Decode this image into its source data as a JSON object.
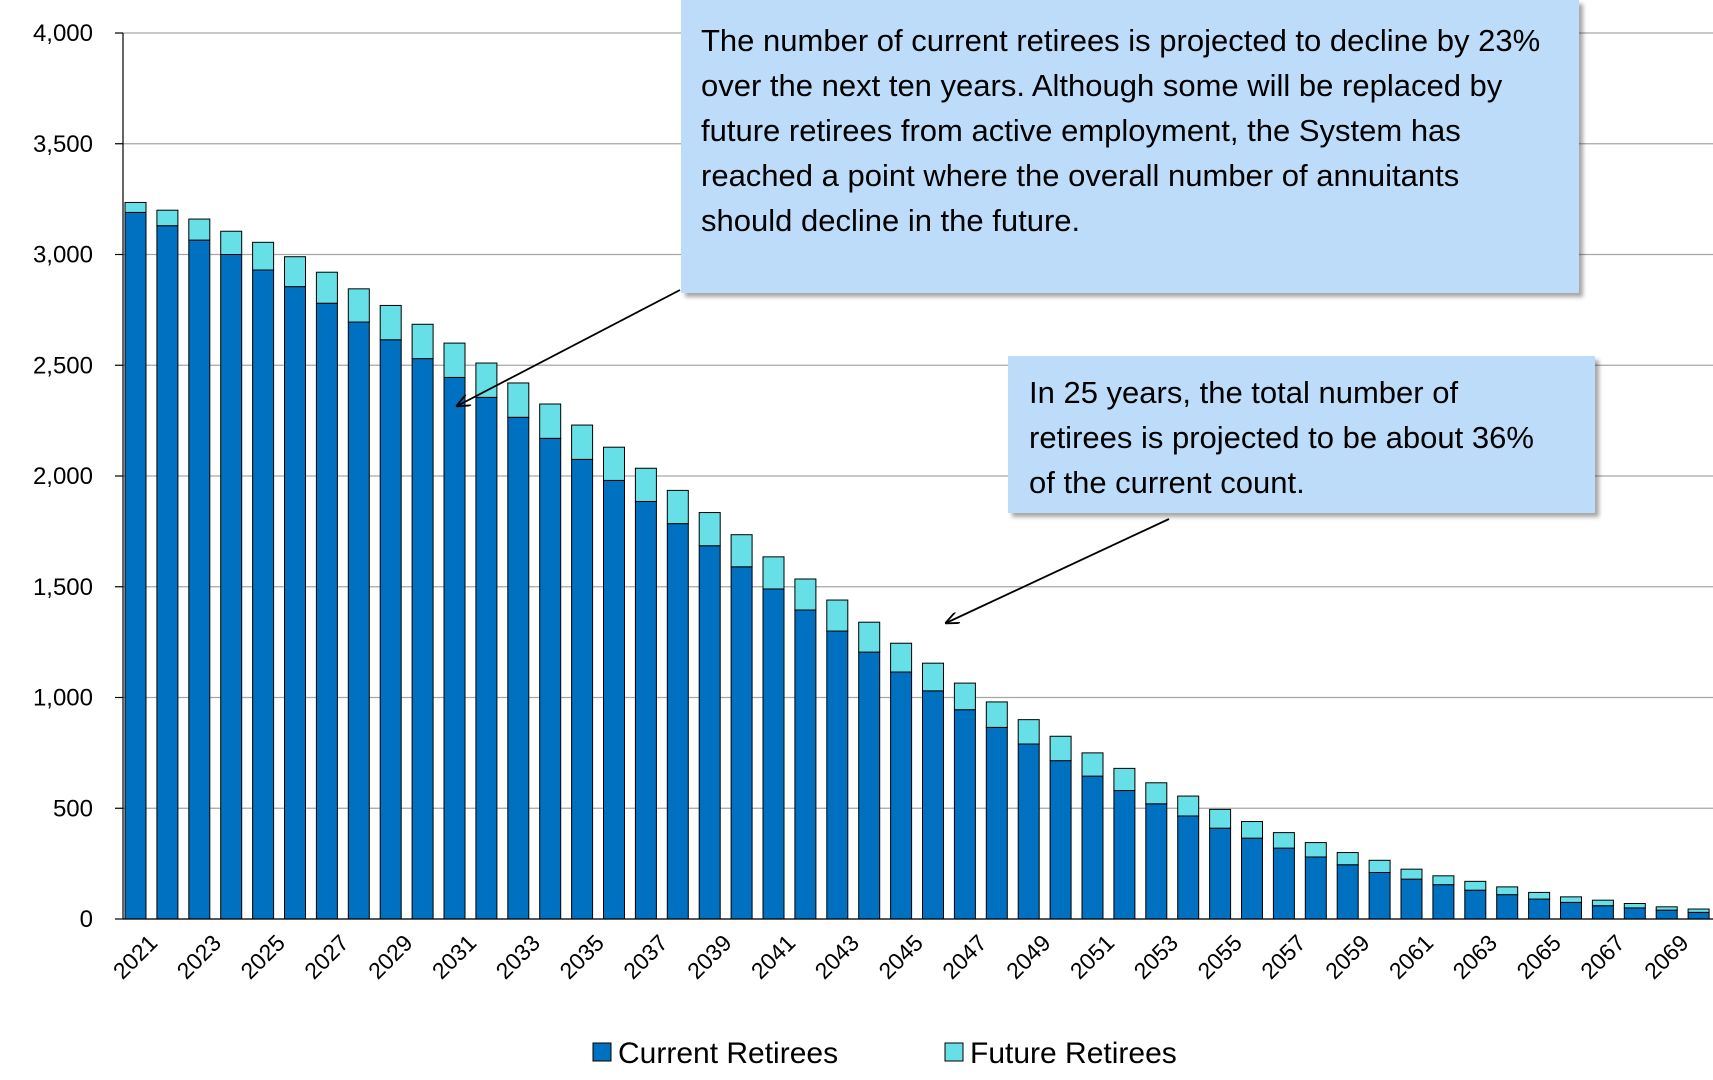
{
  "chart_data": {
    "type": "stacked_bar",
    "categories": [
      "2021",
      null,
      "2023",
      null,
      "2025",
      null,
      "2027",
      null,
      "2029",
      null,
      "2031",
      null,
      "2033",
      null,
      "2035",
      null,
      "2037",
      null,
      "2039",
      null,
      "2041",
      null,
      "2043",
      null,
      "2045",
      null,
      "2047",
      null,
      "2049",
      null,
      "2051",
      null,
      "2053",
      null,
      "2055",
      null,
      "2057",
      null,
      "2059",
      null,
      "2061",
      null,
      "2063",
      null,
      "2065",
      null,
      "2067",
      null,
      "2069",
      null
    ],
    "series": [
      {
        "name": "Current Retirees",
        "color": "#0070c0",
        "values": [
          3190,
          3130,
          3065,
          3000,
          2930,
          2855,
          2780,
          2695,
          2615,
          2530,
          2445,
          2355,
          2265,
          2170,
          2075,
          1980,
          1885,
          1785,
          1685,
          1590,
          1490,
          1395,
          1300,
          1205,
          1115,
          1030,
          945,
          865,
          790,
          715,
          645,
          580,
          520,
          465,
          410,
          365,
          320,
          280,
          245,
          210,
          180,
          155,
          130,
          110,
          90,
          75,
          60,
          50,
          40,
          30
        ]
      },
      {
        "name": "Future Retirees",
        "color": "#66e0e6",
        "values": [
          45,
          70,
          95,
          105,
          125,
          135,
          140,
          150,
          155,
          155,
          155,
          155,
          155,
          155,
          155,
          150,
          150,
          150,
          150,
          145,
          145,
          140,
          140,
          135,
          130,
          125,
          120,
          115,
          110,
          110,
          105,
          100,
          95,
          90,
          85,
          75,
          70,
          65,
          55,
          55,
          45,
          40,
          40,
          35,
          30,
          25,
          25,
          20,
          15,
          15
        ]
      }
    ],
    "ylim": [
      0,
      4000
    ],
    "yticks": [
      0,
      500,
      {
        "value": 1000,
        "label": "1,000"
      },
      {
        "value": 1500,
        "label": "1,500"
      },
      {
        "value": 2000,
        "label": "2,000"
      },
      {
        "value": 2500,
        "label": "2,500"
      },
      {
        "value": 3000,
        "label": "3,000"
      },
      {
        "value": 3500,
        "label": "3,500"
      },
      {
        "value": 4000,
        "label": "4,000"
      }
    ],
    "grid": true,
    "legend": "bottom",
    "annotations": [
      "The number of current retirees is projected to decline by 23% over the next ten years. Although some will be replaced by future retirees from active employment, the System has reached a point where the overall number of annuitants should decline in the future.",
      "In 25 years, the total number of retirees is projected to be about 36% of the current count."
    ]
  }
}
